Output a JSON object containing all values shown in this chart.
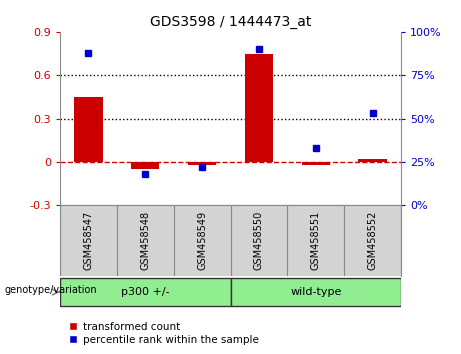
{
  "title": "GDS3598 / 1444473_at",
  "samples": [
    "GSM458547",
    "GSM458548",
    "GSM458549",
    "GSM458550",
    "GSM458551",
    "GSM458552"
  ],
  "bar_values": [
    0.45,
    -0.05,
    -0.02,
    0.75,
    -0.02,
    0.02
  ],
  "percentile_values": [
    88,
    18,
    22,
    90,
    33,
    53
  ],
  "bar_color": "#cc0000",
  "scatter_color": "#0000cc",
  "ylim_left": [
    -0.3,
    0.9
  ],
  "ylim_right": [
    0,
    100
  ],
  "yticks_left": [
    -0.3,
    0.0,
    0.3,
    0.6,
    0.9
  ],
  "yticks_right": [
    0,
    25,
    50,
    75,
    100
  ],
  "ytick_labels_left": [
    "-0.3",
    "0",
    "0.3",
    "0.6",
    "0.9"
  ],
  "ytick_labels_right": [
    "0%",
    "25%",
    "50%",
    "75%",
    "100%"
  ],
  "hlines": [
    0.3,
    0.6
  ],
  "hline_zero_color": "#cc0000",
  "hline_dotted_color": "#000000",
  "groups": [
    {
      "label": "p300 +/-",
      "color": "#90ee90",
      "start": 0,
      "end": 2
    },
    {
      "label": "wild-type",
      "color": "#90ee90",
      "start": 3,
      "end": 5
    }
  ],
  "group_row_label": "genotype/variation",
  "legend_bar_label": "transformed count",
  "legend_scatter_label": "percentile rank within the sample",
  "bar_width": 0.5,
  "background_color": "#ffffff",
  "plot_bg_color": "#ffffff",
  "sample_box_color": "#d3d3d3",
  "sample_box_edge_color": "#888888",
  "xlim": [
    -0.5,
    5.5
  ]
}
